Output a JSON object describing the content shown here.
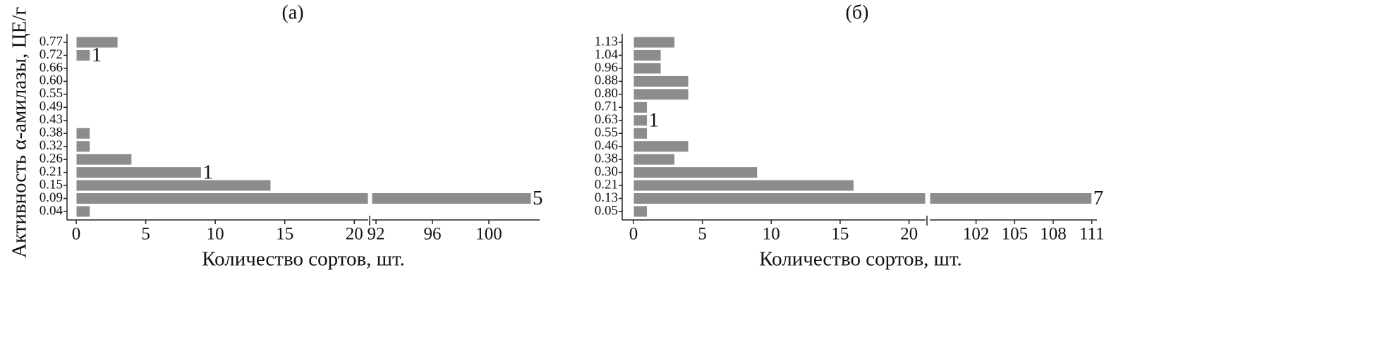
{
  "chart_data": [
    {
      "type": "bar",
      "orientation": "horizontal",
      "title": "(а)",
      "ylabel": "Активность α-амилазы, ЦЕ/г",
      "xlabel": "Количество сортов, шт.",
      "categories": [
        "0.04",
        "0.09",
        "0.15",
        "0.21",
        "0.26",
        "0.32",
        "0.38",
        "0.43",
        "0.49",
        "0.55",
        "0.60",
        "0.66",
        "0.72",
        "0.77"
      ],
      "values": [
        1,
        103,
        14,
        9,
        4,
        1,
        1,
        0,
        0,
        0,
        0,
        0,
        1,
        3
      ],
      "color": "#8c8c8c",
      "x_segments": [
        {
          "xlim": [
            0,
            21
          ],
          "xticks": [
            0,
            5,
            10,
            15,
            20
          ]
        },
        {
          "xlim": [
            91.7,
            103.6
          ],
          "xticks": [
            92,
            96,
            100
          ]
        }
      ],
      "annotations": [
        {
          "text": "1",
          "category": "0.72"
        },
        {
          "text": "1",
          "category": "0.21"
        },
        {
          "text": "5",
          "category": "0.09"
        }
      ]
    },
    {
      "type": "bar",
      "orientation": "horizontal",
      "title": "(б)",
      "ylabel": "Активность α-амилазы, ЦЕ/г",
      "xlabel": "Количество сортов, шт.",
      "categories": [
        "0.05",
        "0.13",
        "0.21",
        "0.30",
        "0.38",
        "0.46",
        "0.55",
        "0.63",
        "0.71",
        "0.80",
        "0.88",
        "0.96",
        "1.04",
        "1.13"
      ],
      "values": [
        1,
        111,
        16,
        9,
        3,
        4,
        1,
        1,
        1,
        4,
        4,
        2,
        2,
        3
      ],
      "color": "#8c8c8c",
      "x_segments": [
        {
          "xlim": [
            0,
            21.2
          ],
          "xticks": [
            0,
            5,
            10,
            15,
            20
          ]
        },
        {
          "xlim": [
            98.4,
            111.4
          ],
          "xticks": [
            102,
            105,
            108,
            111
          ]
        }
      ],
      "annotations": [
        {
          "text": "1",
          "category": "0.63"
        },
        {
          "text": "7",
          "category": "0.13"
        }
      ]
    }
  ]
}
